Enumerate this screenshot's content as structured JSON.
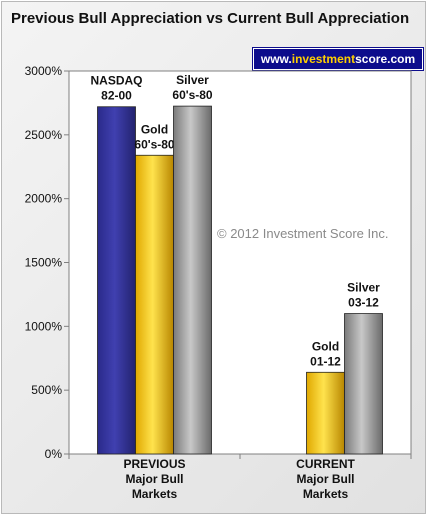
{
  "title": "Previous Bull Appreciation vs Current Bull Appreciation",
  "badge": {
    "prefix": "www.",
    "accent": "investment",
    "suffix": "score.com"
  },
  "copyright": "© 2012 Investment Score Inc.",
  "colors": {
    "nasdaq": "#333399",
    "gold": "#ffcc00",
    "silver": "#999999",
    "badge_bg": "#0c0c8c"
  },
  "chart_data": {
    "type": "bar",
    "title": "Previous Bull Appreciation vs Current Bull Appreciation",
    "ylim": [
      0,
      3000
    ],
    "yticks": [
      0,
      500,
      1000,
      1500,
      2000,
      2500,
      3000
    ],
    "ytick_labels": [
      "0%",
      "500%",
      "1000%",
      "1500%",
      "2000%",
      "2500%",
      "3000%"
    ],
    "grid": false,
    "categories": [
      {
        "lines": [
          "PREVIOUS",
          "Major Bull",
          "Markets"
        ]
      },
      {
        "lines": [
          "CURRENT",
          "Major Bull",
          "Markets"
        ]
      }
    ],
    "bars": [
      {
        "group": 0,
        "slot": 0,
        "color_key": "nasdaq",
        "value": 2720,
        "label": [
          "NASDAQ",
          "82-00"
        ]
      },
      {
        "group": 0,
        "slot": 1,
        "color_key": "gold",
        "value": 2340,
        "label": [
          "Gold",
          "60's-80"
        ]
      },
      {
        "group": 0,
        "slot": 2,
        "color_key": "silver",
        "value": 2725,
        "label": [
          "Silver",
          "60's-80"
        ]
      },
      {
        "group": 1,
        "slot": 1,
        "color_key": "gold",
        "value": 640,
        "label": [
          "Gold",
          "01-12"
        ]
      },
      {
        "group": 1,
        "slot": 2,
        "color_key": "silver",
        "value": 1100,
        "label": [
          "Silver",
          "03-12"
        ]
      }
    ]
  }
}
